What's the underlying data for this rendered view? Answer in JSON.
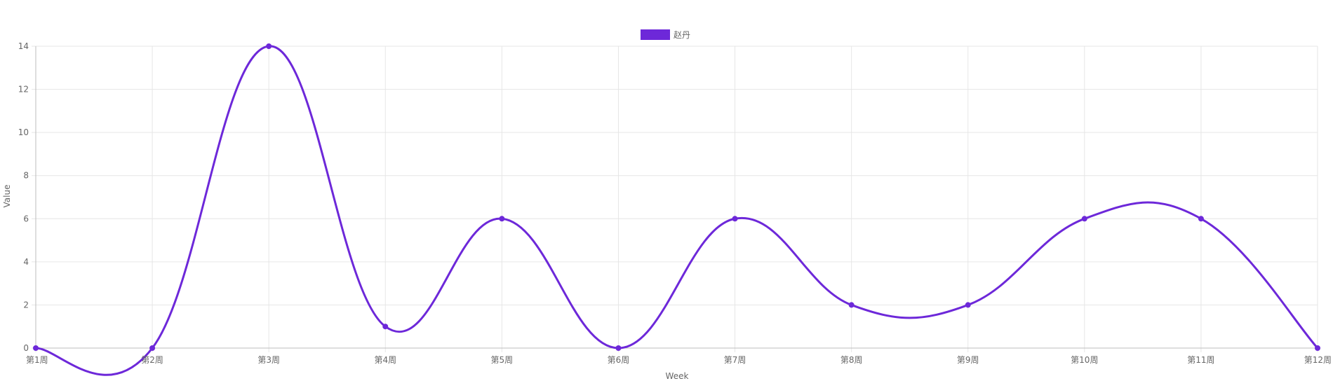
{
  "chart_data": {
    "type": "line",
    "categories": [
      "第1周",
      "第2周",
      "第3周",
      "第4周",
      "第5周",
      "第6周",
      "第7周",
      "第8周",
      "第9周",
      "第10周",
      "第11周",
      "第12周"
    ],
    "series": [
      {
        "name": "赵丹",
        "values": [
          0,
          0,
          14,
          1,
          6,
          0,
          6,
          2,
          2,
          6,
          6,
          0
        ],
        "color": "#6d28d9"
      }
    ],
    "xlabel": "Week",
    "ylabel": "Value",
    "ylim": [
      0,
      14
    ],
    "yticks": [
      0,
      2,
      4,
      6,
      8,
      10,
      12,
      14
    ],
    "grid": true,
    "legend_position": "top-center",
    "smooth": true
  }
}
